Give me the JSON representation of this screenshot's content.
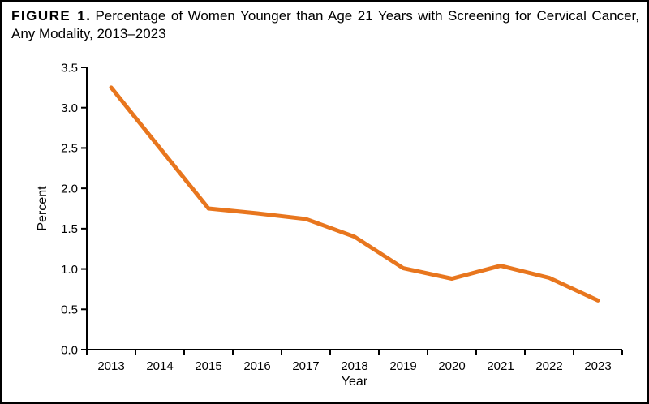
{
  "figure": {
    "label": "FIGURE 1.",
    "title": "Percentage of Women Younger than Age 21 Years with Screening for Cervical Cancer, Any Modality, 2013–2023"
  },
  "chart_data": {
    "type": "line",
    "title": "FIGURE 1. Percentage of Women Younger than Age 21 Years with Screening for Cervical Cancer, Any Modality, 2013–2023",
    "categories": [
      "2013",
      "2014",
      "2015",
      "2016",
      "2017",
      "2018",
      "2019",
      "2020",
      "2021",
      "2022",
      "2023"
    ],
    "values": [
      3.25,
      2.5,
      1.75,
      1.69,
      1.62,
      1.4,
      1.01,
      0.88,
      1.04,
      0.89,
      0.61
    ],
    "xlabel": "Year",
    "ylabel": "Percent",
    "ylim": [
      0,
      3.5
    ],
    "yticks": [
      "0.0",
      "0.5",
      "1.0",
      "1.5",
      "2.0",
      "2.5",
      "3.0",
      "3.5"
    ],
    "grid": false,
    "legend": "none",
    "line_color": "#E8761E",
    "axis_color": "#000000",
    "text_color": "#000000"
  }
}
